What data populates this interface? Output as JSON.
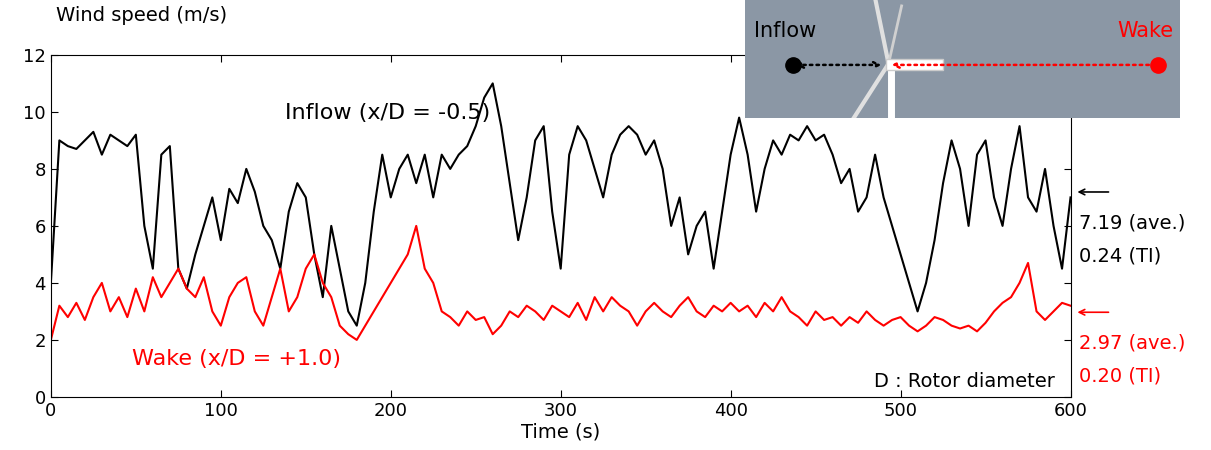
{
  "chart_data": {
    "type": "line",
    "xlabel": "Time (s)",
    "ylabel": "Wind speed (m/s)",
    "x": [
      0,
      5,
      10,
      15,
      20,
      25,
      30,
      35,
      40,
      45,
      50,
      55,
      60,
      65,
      70,
      75,
      80,
      85,
      90,
      95,
      100,
      105,
      110,
      115,
      120,
      125,
      130,
      135,
      140,
      145,
      150,
      155,
      160,
      165,
      170,
      175,
      180,
      185,
      190,
      195,
      200,
      205,
      210,
      215,
      220,
      225,
      230,
      235,
      240,
      245,
      250,
      255,
      260,
      265,
      270,
      275,
      280,
      285,
      290,
      295,
      300,
      305,
      310,
      315,
      320,
      325,
      330,
      335,
      340,
      345,
      350,
      355,
      360,
      365,
      370,
      375,
      380,
      385,
      390,
      395,
      400,
      405,
      410,
      415,
      420,
      425,
      430,
      435,
      440,
      445,
      450,
      455,
      460,
      465,
      470,
      475,
      480,
      485,
      490,
      495,
      500,
      505,
      510,
      515,
      520,
      525,
      530,
      535,
      540,
      545,
      550,
      555,
      560,
      565,
      570,
      575,
      580,
      585,
      590,
      595,
      600
    ],
    "series": [
      {
        "name": "Inflow (x/D = -0.5)",
        "color": "#000000",
        "average": 7.19,
        "average_label": "7.19 (ave.)",
        "ti_label": "0.24 (TI)",
        "values": [
          4.0,
          9.0,
          8.8,
          8.7,
          9.0,
          9.3,
          8.5,
          9.2,
          9.0,
          8.8,
          9.2,
          6.0,
          4.5,
          8.5,
          8.8,
          4.5,
          3.8,
          5.0,
          6.0,
          7.0,
          5.5,
          7.3,
          6.8,
          8.0,
          7.2,
          6.0,
          5.5,
          4.5,
          6.5,
          7.5,
          7.0,
          5.0,
          3.5,
          6.0,
          4.5,
          3.0,
          2.5,
          4.0,
          6.5,
          8.5,
          7.0,
          8.0,
          8.5,
          7.5,
          8.5,
          7.0,
          8.5,
          8.0,
          8.5,
          8.8,
          9.5,
          10.5,
          11.0,
          9.5,
          7.5,
          5.5,
          7.0,
          9.0,
          9.5,
          6.5,
          4.5,
          8.5,
          9.5,
          9.0,
          8.0,
          7.0,
          8.5,
          9.2,
          9.5,
          9.2,
          8.5,
          9.0,
          8.0,
          6.0,
          7.0,
          5.0,
          6.0,
          6.5,
          4.5,
          6.5,
          8.5,
          9.8,
          8.5,
          6.5,
          8.0,
          9.0,
          8.5,
          9.2,
          9.0,
          9.5,
          9.0,
          9.2,
          8.5,
          7.5,
          8.0,
          6.5,
          7.0,
          8.5,
          7.0,
          6.0,
          5.0,
          4.0,
          3.0,
          4.0,
          5.5,
          7.5,
          9.0,
          8.0,
          6.0,
          8.5,
          9.0,
          7.0,
          6.0,
          8.0,
          9.5,
          7.0,
          6.5,
          8.0,
          6.0,
          4.5,
          7.0
        ]
      },
      {
        "name": "Wake (x/D = +1.0)",
        "color": "#ff0000",
        "average": 2.97,
        "average_label": "2.97 (ave.)",
        "ti_label": "0.20 (TI)",
        "values": [
          2.0,
          3.2,
          2.8,
          3.3,
          2.7,
          3.5,
          4.0,
          3.0,
          3.5,
          2.8,
          3.8,
          3.0,
          4.2,
          3.5,
          4.0,
          4.5,
          3.8,
          3.5,
          4.2,
          3.0,
          2.5,
          3.5,
          4.0,
          4.2,
          3.0,
          2.5,
          3.5,
          4.5,
          3.0,
          3.5,
          4.5,
          5.0,
          4.0,
          3.5,
          2.5,
          2.2,
          2.0,
          2.5,
          3.0,
          3.5,
          4.0,
          4.5,
          5.0,
          6.0,
          4.5,
          4.0,
          3.0,
          2.8,
          2.5,
          3.0,
          2.7,
          2.8,
          2.2,
          2.5,
          3.0,
          2.8,
          3.2,
          3.0,
          2.7,
          3.2,
          3.0,
          2.8,
          3.3,
          2.7,
          3.5,
          3.0,
          3.5,
          3.2,
          3.0,
          2.5,
          3.0,
          3.3,
          3.0,
          2.8,
          3.2,
          3.5,
          3.0,
          2.8,
          3.2,
          3.0,
          3.3,
          3.0,
          3.2,
          2.8,
          3.3,
          3.0,
          3.5,
          3.0,
          2.8,
          2.5,
          3.0,
          2.7,
          2.8,
          2.5,
          2.8,
          2.6,
          3.0,
          2.7,
          2.5,
          2.7,
          2.8,
          2.5,
          2.3,
          2.5,
          2.8,
          2.7,
          2.5,
          2.4,
          2.5,
          2.3,
          2.6,
          3.0,
          3.3,
          3.5,
          4.0,
          4.7,
          3.0,
          2.7,
          3.0,
          3.3,
          3.2
        ]
      }
    ],
    "xlim": [
      0,
      600
    ],
    "xticks": [
      0,
      100,
      200,
      300,
      400,
      500,
      600
    ],
    "ylim": [
      0,
      12
    ],
    "yticks": [
      0,
      2,
      4,
      6,
      8,
      10,
      12
    ],
    "grid": false,
    "annotations": [
      "D : Rotor diameter"
    ],
    "inset": {
      "left_label": "Inflow",
      "right_label": "Wake"
    }
  }
}
